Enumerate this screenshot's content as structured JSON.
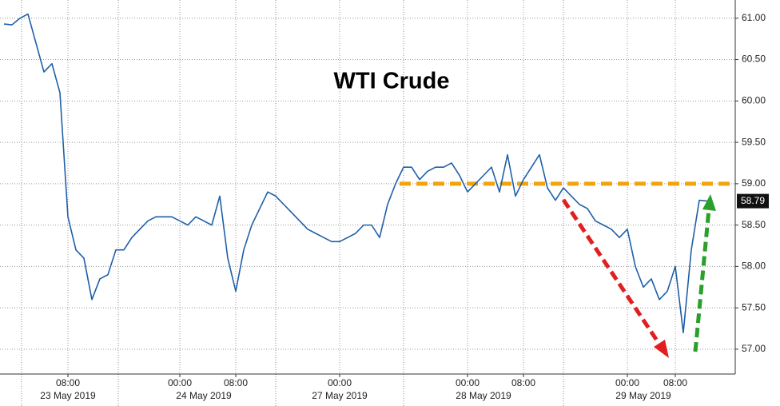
{
  "chart_data": {
    "type": "line",
    "title": "WTI Crude",
    "categories": [
      null,
      null,
      null,
      null,
      null,
      null,
      null,
      null,
      "08:00",
      null,
      null,
      null,
      null,
      null,
      null,
      null,
      null,
      null,
      null,
      null,
      null,
      null,
      "00:00",
      null,
      null,
      null,
      null,
      null,
      null,
      "08:00",
      null,
      null,
      null,
      null,
      null,
      null,
      null,
      null,
      null,
      null,
      null,
      null,
      "00:00",
      null,
      null,
      null,
      null,
      null,
      null,
      null,
      null,
      null,
      null,
      null,
      null,
      null,
      null,
      null,
      "00:00",
      null,
      null,
      null,
      null,
      null,
      null,
      "08:00",
      null,
      null,
      null,
      null,
      null,
      null,
      null,
      null,
      null,
      null,
      null,
      null,
      "00:00",
      null,
      null,
      null,
      null,
      null,
      "08:00",
      null,
      null,
      null,
      null
    ],
    "dates": [
      null,
      null,
      null,
      null,
      null,
      null,
      null,
      null,
      "23 May 2019",
      null,
      null,
      null,
      null,
      null,
      null,
      null,
      null,
      null,
      null,
      null,
      null,
      null,
      null,
      null,
      null,
      "24 May 2019",
      null,
      null,
      null,
      null,
      null,
      null,
      null,
      null,
      null,
      null,
      null,
      null,
      null,
      null,
      null,
      null,
      "27 May 2019",
      null,
      null,
      null,
      null,
      null,
      null,
      null,
      null,
      null,
      null,
      null,
      null,
      null,
      null,
      null,
      null,
      null,
      "28 May 2019",
      null,
      null,
      null,
      null,
      null,
      null,
      null,
      null,
      null,
      null,
      null,
      null,
      null,
      null,
      null,
      null,
      null,
      null,
      null,
      "29 May 2019",
      null,
      null,
      null,
      null,
      null,
      null,
      null,
      null
    ],
    "values": [
      60.93,
      60.92,
      61.0,
      61.05,
      60.7,
      60.35,
      60.45,
      60.1,
      58.6,
      58.2,
      58.1,
      57.6,
      57.85,
      57.9,
      58.2,
      58.2,
      58.35,
      58.45,
      58.55,
      58.6,
      58.6,
      58.6,
      58.55,
      58.5,
      58.6,
      58.55,
      58.5,
      58.85,
      58.1,
      57.7,
      58.2,
      58.5,
      58.7,
      58.9,
      58.85,
      58.75,
      58.65,
      58.55,
      58.45,
      58.4,
      58.35,
      58.3,
      58.3,
      58.35,
      58.4,
      58.5,
      58.5,
      58.35,
      58.75,
      59.0,
      59.2,
      59.2,
      59.05,
      59.15,
      59.2,
      59.2,
      59.25,
      59.1,
      58.9,
      59.0,
      59.1,
      59.2,
      58.9,
      59.35,
      58.85,
      59.05,
      59.2,
      59.35,
      58.95,
      58.8,
      58.95,
      58.85,
      58.75,
      58.7,
      58.55,
      58.5,
      58.45,
      58.35,
      58.45,
      58.0,
      57.75,
      57.85,
      57.6,
      57.7,
      58.0,
      57.2,
      58.2,
      58.8,
      58.79
    ],
    "value_labels": [
      null,
      null,
      null,
      null,
      null,
      null,
      null,
      null,
      null,
      null,
      null,
      null,
      null,
      null,
      null,
      null,
      null,
      null,
      null,
      null,
      null,
      null,
      null,
      null,
      null,
      null,
      null,
      null,
      null,
      null,
      null,
      null,
      null,
      null,
      null,
      null,
      null,
      null,
      null,
      null,
      null,
      null,
      null,
      null,
      null,
      null,
      null,
      null,
      null,
      null,
      null,
      null,
      null,
      null,
      null,
      null,
      null,
      null,
      null,
      null,
      null,
      null,
      null,
      null,
      null,
      null,
      null,
      null,
      null,
      null,
      null,
      null,
      null,
      null,
      null,
      null,
      null,
      null,
      null,
      null,
      null,
      null,
      null,
      null,
      null,
      null,
      null,
      null,
      "58.79"
    ],
    "color": "#1f5fa8",
    "reference_line": {
      "value": 59.0,
      "color": "#f0a30a"
    },
    "ylim": [
      56.7,
      61.22
    ],
    "yticks": [
      {
        "value": 57,
        "label": "57.00"
      },
      {
        "value": 57.5,
        "label": "57.50"
      },
      {
        "value": 58,
        "label": "58.00"
      },
      {
        "value": 58.5,
        "label": "58.50"
      },
      {
        "value": 59,
        "label": "59.00"
      },
      {
        "value": 59.5,
        "label": "59.50"
      },
      {
        "value": 60,
        "label": "60.00"
      },
      {
        "value": 60.5,
        "label": "60.50"
      },
      {
        "value": 61,
        "label": "61.00"
      }
    ],
    "grid": true
  }
}
